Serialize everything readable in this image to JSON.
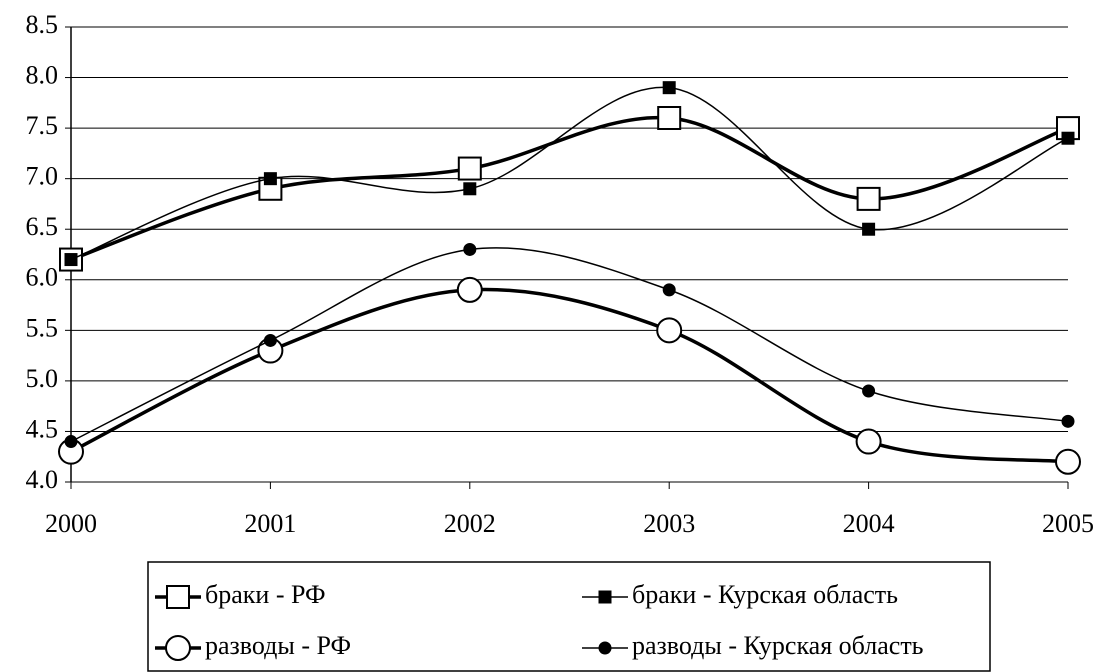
{
  "chart_data": {
    "type": "line",
    "categories": [
      "2000",
      "2001",
      "2002",
      "2003",
      "2004",
      "2005"
    ],
    "series": [
      {
        "name": "браки - РФ",
        "color": "#000000",
        "marker": "square",
        "filled": false,
        "line_width": 3.5,
        "values": [
          6.2,
          6.9,
          7.1,
          7.6,
          6.8,
          7.5
        ]
      },
      {
        "name": "браки - Курская область",
        "color": "#000000",
        "marker": "square",
        "filled": true,
        "line_width": 1.5,
        "values": [
          6.2,
          7.0,
          6.9,
          7.9,
          6.5,
          7.4
        ]
      },
      {
        "name": "разводы - РФ",
        "color": "#000000",
        "marker": "circle",
        "filled": false,
        "line_width": 3.5,
        "values": [
          4.3,
          5.3,
          5.9,
          5.5,
          4.4,
          4.2
        ]
      },
      {
        "name": "разводы - Курская область",
        "color": "#000000",
        "marker": "circle",
        "filled": true,
        "line_width": 1.5,
        "values": [
          4.4,
          5.4,
          6.3,
          5.9,
          4.9,
          4.6
        ]
      }
    ],
    "ylim": [
      4.0,
      8.5
    ],
    "yticks": [
      {
        "value": 4.0,
        "label": "4.0"
      },
      4.5,
      {
        "value": 5.0,
        "label": "5.0"
      },
      5.5,
      {
        "value": 6.0,
        "label": "6.0"
      },
      6.5,
      {
        "value": 7.0,
        "label": "7.0"
      },
      7.5,
      {
        "value": 8.0,
        "label": "8.0"
      },
      8.5
    ],
    "grid": true
  }
}
